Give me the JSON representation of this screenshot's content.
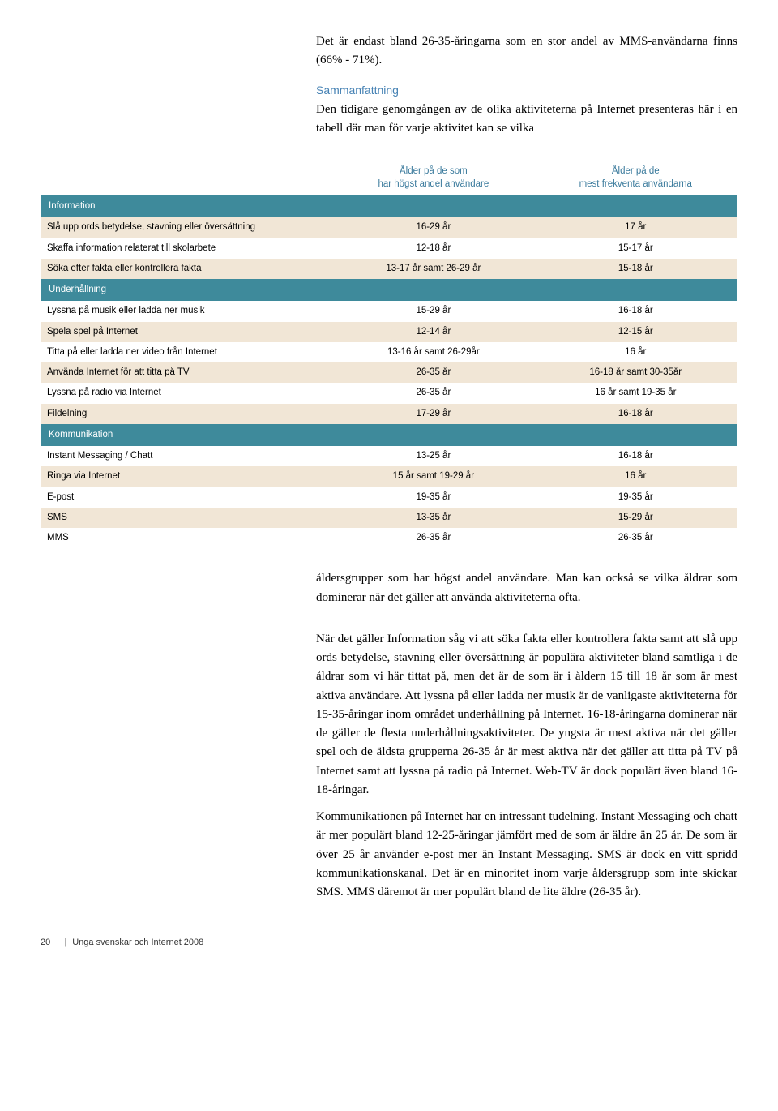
{
  "intro": {
    "p1": "Det är endast bland 26-35-åringarna som en stor andel av MMS-användarna finns (66% - 71%).",
    "subheading": "Sammanfattning",
    "p2": "Den tidigare genomgången av de olika aktiviteterna på Internet presenteras här i en tabell där man för varje aktivitet kan se vilka"
  },
  "table": {
    "headers": {
      "col1": "",
      "col2_l1": "Ålder på de som",
      "col2_l2": "har högst andel användare",
      "col3_l1": "Ålder på de",
      "col3_l2": "mest frekventa användarna"
    },
    "sections": [
      {
        "title": "Information",
        "rows": [
          {
            "label": "Slå upp ords betydelse, stavning eller översättning",
            "c1": "16-29 år",
            "c2": "17 år"
          },
          {
            "label": "Skaffa information relaterat till skolarbete",
            "c1": "12-18 år",
            "c2": "15-17 år"
          },
          {
            "label": "Söka efter fakta eller kontrollera fakta",
            "c1": "13-17 år samt 26-29 år",
            "c2": "15-18 år"
          }
        ]
      },
      {
        "title": "Underhållning",
        "rows": [
          {
            "label": "Lyssna på musik eller ladda ner musik",
            "c1": "15-29 år",
            "c2": "16-18 år"
          },
          {
            "label": "Spela spel på Internet",
            "c1": "12-14 år",
            "c2": "12-15 år"
          },
          {
            "label": "Titta på eller ladda ner video från Internet",
            "c1": "13-16 år samt 26-29år",
            "c2": "16 år"
          },
          {
            "label": "Använda Internet för att titta på TV",
            "c1": "26-35 år",
            "c2": "16-18 år samt 30-35år"
          },
          {
            "label": "Lyssna på radio via Internet",
            "c1": "26-35 år",
            "c2": "16 år samt 19-35 år"
          },
          {
            "label": "Fildelning",
            "c1": "17-29 år",
            "c2": "16-18 år"
          }
        ]
      },
      {
        "title": "Kommunikation",
        "rows": [
          {
            "label": "Instant Messaging / Chatt",
            "c1": "13-25 år",
            "c2": "16-18 år"
          },
          {
            "label": "Ringa via Internet",
            "c1": "15 år samt 19-29 år",
            "c2": "16 år"
          },
          {
            "label": "E-post",
            "c1": "19-35 år",
            "c2": "19-35 år"
          },
          {
            "label": "SMS",
            "c1": "13-35 år",
            "c2": "15-29 år"
          },
          {
            "label": "MMS",
            "c1": "26-35 år",
            "c2": "26-35 år"
          }
        ]
      }
    ]
  },
  "post": {
    "p1": "åldersgrupper som har högst andel användare. Man kan också se vilka åldrar som dominerar när det gäller att använda aktiviteterna ofta.",
    "p2": "När det gäller Information såg vi att söka fakta eller kontrollera fakta samt att slå upp ords betydelse, stavning eller översättning är populära aktiviteter bland samtliga i de åldrar som vi här tittat på, men det är de som är i åldern 15 till 18 år som är mest aktiva användare. Att lyssna på eller ladda ner musik är de vanligaste aktiviteterna för 15-35-åringar inom området underhållning på Internet. 16-18-åringarna dominerar när de gäller de flesta underhållningsaktiviteter. De yngsta är mest aktiva när det gäller spel och de äldsta grupperna 26-35 år är mest aktiva när det gäller att titta på TV på Internet samt att lyssna på radio på Internet. Web-TV är dock populärt även bland 16-18-åringar.",
    "p3": "Kommunikationen på Internet har en intressant tudelning. Instant Messaging och chatt är mer populärt bland 12-25-åringar jämfört med de som är äldre än 25 år. De som är över 25 år använder e-post mer än Instant Messaging. SMS är dock en vitt spridd kommunikationskanal. Det är en minoritet inom varje åldersgrupp som inte skickar SMS. MMS däremot är mer populärt bland de lite äldre (26-35 år)."
  },
  "footer": {
    "page": "20",
    "title": "Unga svenskar och Internet 2008"
  }
}
